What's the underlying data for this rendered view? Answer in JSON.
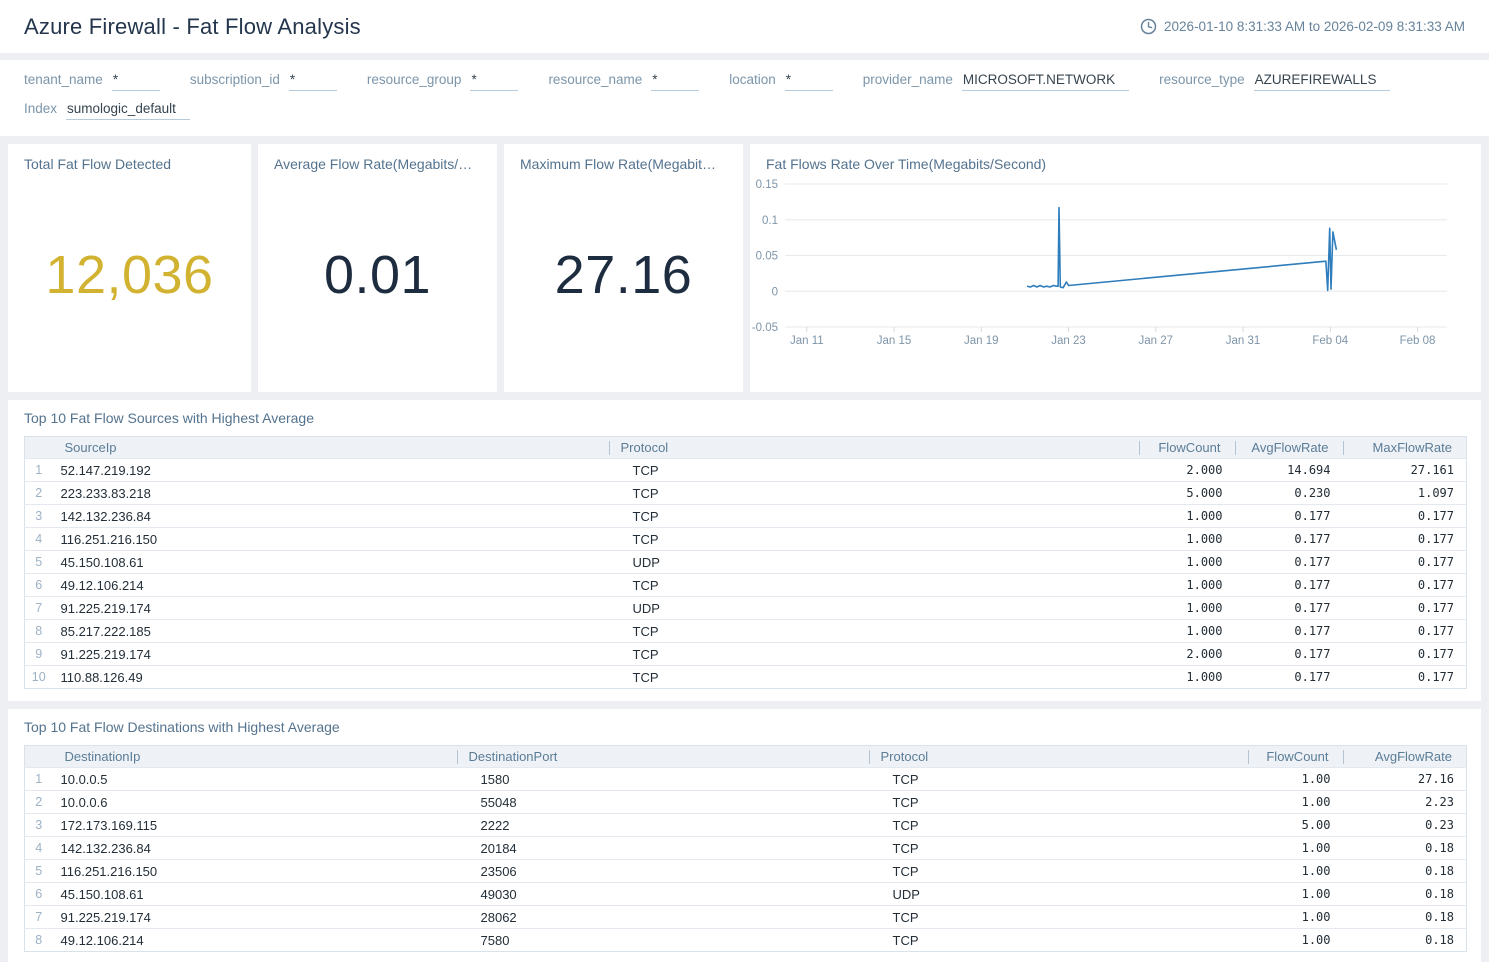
{
  "header": {
    "title": "Azure Firewall - Fat Flow Analysis",
    "time_range": "2026-01-10 8:31:33 AM to 2026-02-09 8:31:33 AM"
  },
  "filters": [
    {
      "label": "tenant_name",
      "value": "*"
    },
    {
      "label": "subscription_id",
      "value": "*"
    },
    {
      "label": "resource_group",
      "value": "*"
    },
    {
      "label": "resource_name",
      "value": "*"
    },
    {
      "label": "location",
      "value": "*"
    },
    {
      "label": "provider_name",
      "value": "MICROSOFT.NETWORK"
    },
    {
      "label": "resource_type",
      "value": "AZUREFIREWALLS"
    },
    {
      "label": "Index",
      "value": "sumologic_default"
    }
  ],
  "kpis": [
    {
      "title": "Total Fat Flow Detected",
      "value": "12,036",
      "color": "#d2b231"
    },
    {
      "title": "Average Flow Rate(Megabits/…",
      "value": "0.01",
      "color": "#1d2c3f"
    },
    {
      "title": "Maximum Flow Rate(Megabit…",
      "value": "27.16",
      "color": "#1d2c3f"
    }
  ],
  "chart_data": {
    "type": "line",
    "title": "Fat Flows Rate Over Time(Megabits/Second)",
    "xlabel": "",
    "ylabel": "",
    "grid": "horizontal",
    "line_color": "#2e7dbc",
    "axis_text_color": "#7e95a9",
    "grid_color": "#e6e9ed",
    "x_domain": [
      10.0,
      40.35
    ],
    "y_domain": [
      -0.05,
      0.15
    ],
    "y_ticks": [
      {
        "v": -0.05,
        "label": "-0.05"
      },
      {
        "v": 0,
        "label": "0"
      },
      {
        "v": 0.05,
        "label": "0.05"
      },
      {
        "v": 0.1,
        "label": "0.1"
      },
      {
        "v": 0.15,
        "label": "0.15"
      }
    ],
    "x_ticks": [
      {
        "t": 11,
        "label": "Jan 11"
      },
      {
        "t": 15,
        "label": "Jan 15"
      },
      {
        "t": 19,
        "label": "Jan 19"
      },
      {
        "t": 23,
        "label": "Jan 23"
      },
      {
        "t": 27,
        "label": "Jan 27"
      },
      {
        "t": 31,
        "label": "Jan 31"
      },
      {
        "t": 35,
        "label": "Feb 04"
      },
      {
        "t": 39,
        "label": "Feb 08"
      }
    ],
    "series": [
      {
        "name": "FlowRate",
        "points": [
          [
            21.1,
            0.007
          ],
          [
            21.25,
            0.006
          ],
          [
            21.4,
            0.008
          ],
          [
            21.55,
            0.006
          ],
          [
            21.7,
            0.008
          ],
          [
            21.85,
            0.006
          ],
          [
            22.0,
            0.007
          ],
          [
            22.15,
            0.006
          ],
          [
            22.3,
            0.008
          ],
          [
            22.45,
            0.007
          ],
          [
            22.52,
            0.007
          ],
          [
            22.56,
            0.117
          ],
          [
            22.62,
            0.006
          ],
          [
            22.75,
            0.005
          ],
          [
            22.9,
            0.013
          ],
          [
            23.0,
            0.008
          ],
          [
            34.8,
            0.042
          ],
          [
            34.88,
            0.001
          ],
          [
            34.97,
            0.088
          ],
          [
            35.03,
            0.003
          ],
          [
            35.12,
            0.083
          ],
          [
            35.2,
            0.07
          ],
          [
            35.28,
            0.058
          ]
        ]
      }
    ]
  },
  "tables": [
    {
      "title": "Top 10 Fat Flow Sources with Highest Average",
      "columns": [
        "SourceIp",
        "Protocol",
        "FlowCount",
        "AvgFlowRate",
        "MaxFlowRate"
      ],
      "rows": [
        [
          "52.147.219.192",
          "TCP",
          "2.000",
          "14.694",
          "27.161"
        ],
        [
          "223.233.83.218",
          "TCP",
          "5.000",
          "0.230",
          "1.097"
        ],
        [
          "142.132.236.84",
          "TCP",
          "1.000",
          "0.177",
          "0.177"
        ],
        [
          "116.251.216.150",
          "TCP",
          "1.000",
          "0.177",
          "0.177"
        ],
        [
          "45.150.108.61",
          "UDP",
          "1.000",
          "0.177",
          "0.177"
        ],
        [
          "49.12.106.214",
          "TCP",
          "1.000",
          "0.177",
          "0.177"
        ],
        [
          "91.225.219.174",
          "UDP",
          "1.000",
          "0.177",
          "0.177"
        ],
        [
          "85.217.222.185",
          "TCP",
          "1.000",
          "0.177",
          "0.177"
        ],
        [
          "91.225.219.174",
          "TCP",
          "2.000",
          "0.177",
          "0.177"
        ],
        [
          "110.88.126.49",
          "TCP",
          "1.000",
          "0.177",
          "0.177"
        ]
      ]
    },
    {
      "title": "Top 10 Fat Flow Destinations with Highest Average",
      "columns": [
        "DestinationIp",
        "DestinationPort",
        "Protocol",
        "FlowCount",
        "AvgFlowRate"
      ],
      "rows": [
        [
          "10.0.0.5",
          "1580",
          "TCP",
          "1.00",
          "27.16"
        ],
        [
          "10.0.0.6",
          "55048",
          "TCP",
          "1.00",
          "2.23"
        ],
        [
          "172.173.169.115",
          "2222",
          "TCP",
          "5.00",
          "0.23"
        ],
        [
          "142.132.236.84",
          "20184",
          "TCP",
          "1.00",
          "0.18"
        ],
        [
          "116.251.216.150",
          "23506",
          "TCP",
          "1.00",
          "0.18"
        ],
        [
          "45.150.108.61",
          "49030",
          "UDP",
          "1.00",
          "0.18"
        ],
        [
          "91.225.219.174",
          "28062",
          "TCP",
          "1.00",
          "0.18"
        ],
        [
          "49.12.106.214",
          "7580",
          "TCP",
          "1.00",
          "0.18"
        ]
      ]
    }
  ]
}
